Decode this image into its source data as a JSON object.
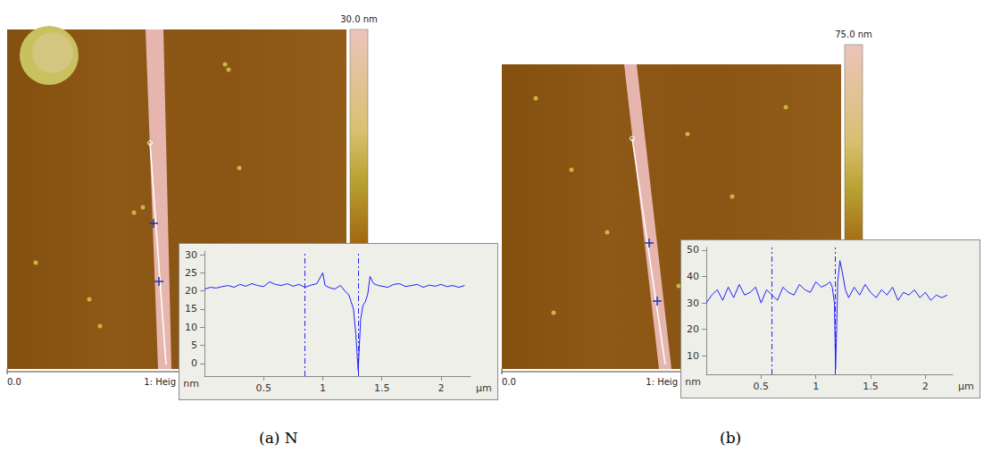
{
  "panels": [
    {
      "caption": "(a) N",
      "colorbar_label": "30.0 nm",
      "scale_start": "0.0",
      "scale_label": "1: Heig"
    },
    {
      "caption": "(b)",
      "colorbar_label": "75.0 nm",
      "scale_start": "0.0",
      "scale_label": "1: Heig"
    }
  ],
  "chart_data": [
    {
      "type": "line",
      "color": "#1f1fff",
      "marker": "none",
      "line_style": "solid",
      "grid": false,
      "xlabel": "µm",
      "ylabel": "nm",
      "xlim": [
        0,
        2.25
      ],
      "xticks": [
        0.5,
        1,
        1.5,
        2
      ],
      "ylim": [
        -3.5,
        31
      ],
      "yticks": [
        0,
        5,
        10,
        15,
        20,
        25,
        30
      ],
      "cursors": [
        0.85,
        1.3
      ],
      "x": [
        0,
        0.05,
        0.1,
        0.15,
        0.2,
        0.25,
        0.3,
        0.35,
        0.4,
        0.45,
        0.5,
        0.55,
        0.6,
        0.65,
        0.7,
        0.75,
        0.8,
        0.85,
        0.9,
        0.95,
        1.0,
        1.02,
        1.05,
        1.1,
        1.15,
        1.2,
        1.22,
        1.24,
        1.26,
        1.28,
        1.29,
        1.3,
        1.31,
        1.32,
        1.34,
        1.36,
        1.38,
        1.4,
        1.43,
        1.47,
        1.55,
        1.6,
        1.65,
        1.7,
        1.75,
        1.8,
        1.85,
        1.9,
        1.95,
        2.0,
        2.05,
        2.1,
        2.15,
        2.2
      ],
      "values": [
        20.5,
        21,
        20.8,
        21.2,
        21.5,
        21,
        21.8,
        21.3,
        22,
        21.5,
        21.2,
        22.5,
        21.8,
        21.5,
        22,
        21.3,
        21.8,
        21,
        21.6,
        22,
        25,
        21.5,
        21,
        20.5,
        21.5,
        19.5,
        19,
        17,
        15,
        8,
        3,
        -2,
        5,
        12,
        16,
        17,
        19,
        24,
        22,
        21.5,
        21,
        21.8,
        22,
        21.2,
        21.5,
        21.8,
        21,
        21.6,
        21.3,
        21.8,
        21.2,
        21.5,
        21,
        21.5
      ]
    },
    {
      "type": "line",
      "color": "#1f1fff",
      "marker": "none",
      "line_style": "solid",
      "grid": false,
      "xlabel": "µm",
      "ylabel": "nm",
      "xlim": [
        0,
        2.25
      ],
      "xticks": [
        0.5,
        1,
        1.5,
        2
      ],
      "ylim": [
        3,
        51
      ],
      "yticks": [
        10,
        20,
        30,
        40,
        50
      ],
      "cursors": [
        0.6,
        1.18
      ],
      "x": [
        0,
        0.05,
        0.1,
        0.15,
        0.2,
        0.25,
        0.3,
        0.35,
        0.4,
        0.45,
        0.5,
        0.55,
        0.6,
        0.65,
        0.7,
        0.75,
        0.8,
        0.85,
        0.9,
        0.95,
        1.0,
        1.05,
        1.1,
        1.13,
        1.15,
        1.17,
        1.18,
        1.19,
        1.2,
        1.22,
        1.24,
        1.27,
        1.3,
        1.35,
        1.4,
        1.45,
        1.5,
        1.55,
        1.6,
        1.65,
        1.7,
        1.75,
        1.8,
        1.85,
        1.9,
        1.95,
        2.0,
        2.05,
        2.1,
        2.15,
        2.2
      ],
      "values": [
        30,
        33,
        35,
        31,
        36,
        32,
        37,
        33,
        34,
        36,
        30,
        35,
        33,
        31,
        36,
        34,
        33,
        37,
        35,
        34,
        38,
        36,
        37,
        38,
        36,
        30,
        5,
        20,
        38,
        46,
        42,
        35,
        32,
        36,
        33,
        37,
        34,
        32,
        35,
        33,
        36,
        31,
        34,
        33,
        35,
        32,
        34,
        31,
        33,
        32,
        33
      ]
    }
  ]
}
